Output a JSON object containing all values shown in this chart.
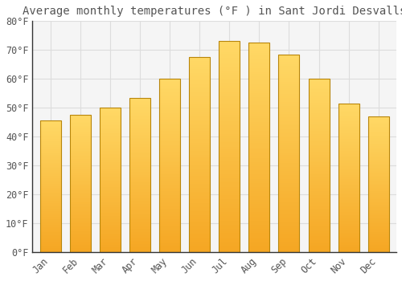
{
  "title": "Average monthly temperatures (°F ) in Sant Jordi Desvalls",
  "months": [
    "Jan",
    "Feb",
    "Mar",
    "Apr",
    "May",
    "Jun",
    "Jul",
    "Aug",
    "Sep",
    "Oct",
    "Nov",
    "Dec"
  ],
  "values": [
    45.5,
    47.5,
    50.0,
    53.5,
    60.0,
    67.5,
    73.0,
    72.5,
    68.5,
    60.0,
    51.5,
    47.0
  ],
  "bar_color_bottom": "#F5A623",
  "bar_color_top": "#FFD966",
  "bar_edge_color": "#B8860B",
  "background_color": "#FFFFFF",
  "plot_bg_color": "#F5F5F5",
  "grid_color": "#DDDDDD",
  "text_color": "#555555",
  "spine_color": "#AAAAAA",
  "ylim": [
    0,
    80
  ],
  "yticks": [
    0,
    10,
    20,
    30,
    40,
    50,
    60,
    70,
    80
  ],
  "title_fontsize": 10,
  "tick_fontsize": 8.5,
  "bar_width": 0.7
}
